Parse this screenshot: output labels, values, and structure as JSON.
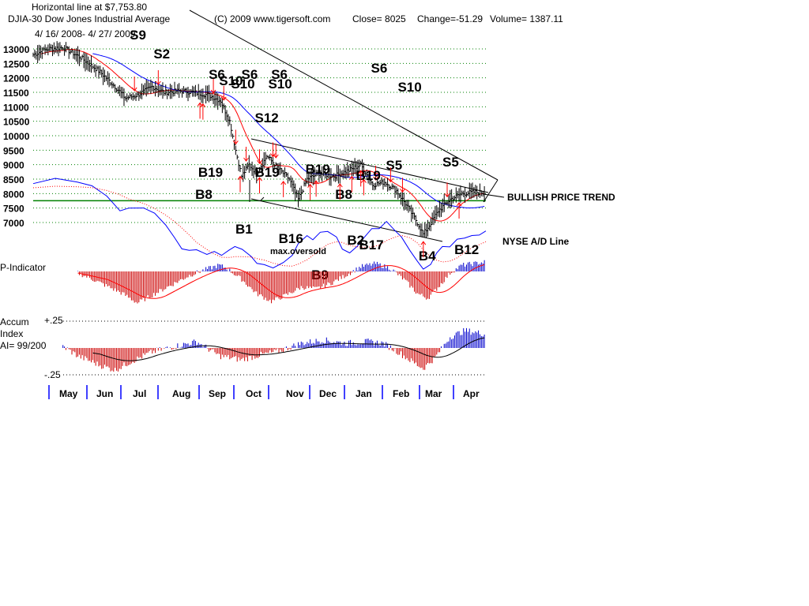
{
  "header": {
    "horizontal_line": "Horizontal line at $7,753.80",
    "index": "DJIA-30  Dow Jones Industrial Average",
    "copyright": "(C) 2009 www.tigersoft.com",
    "close": "Close=  8025",
    "change": "Change=-51.29",
    "volume": "Volume= 1387.11",
    "date_range": "4/ 16/ 2008- 4/ 27/ 2009"
  },
  "annotations": {
    "bullish_trend": "BULLISH PRICE TREND",
    "nyse_ad": "NYSE A/D Line",
    "max_oversold": "max.oversold",
    "p_indicator": "P-Indicator",
    "accum_1": "Accum",
    "accum_2": "Index",
    "accum_3": "AI= 99/200",
    "ai_top": "+.25",
    "ai_bottom": "-.25"
  },
  "colors": {
    "price": "#000000",
    "ma_red": "#ff0000",
    "ma_blue": "#0000ff",
    "ad_line": "#0000ff",
    "grid": "#008000",
    "horizontal_line": "#008000",
    "positive_bar": "#0000cc",
    "negative_bar": "#cc0000"
  },
  "chart_data": {
    "type": "line",
    "title": "DJIA-30  Dow Jones Industrial Average",
    "y_ticks": [
      13000,
      12500,
      12000,
      11500,
      11000,
      10500,
      10000,
      9500,
      9000,
      8500,
      8000,
      7500,
      7000
    ],
    "ylim": [
      6500,
      13200
    ],
    "months": [
      "May",
      "Jun",
      "Jul",
      "Aug",
      "Sep",
      "Oct",
      "Nov",
      "Dec",
      "Jan",
      "Feb",
      "Mar",
      "Apr"
    ],
    "horizontal_line": 7753.8,
    "price_keypoints": [
      [
        0,
        12800
      ],
      [
        10,
        13000
      ],
      [
        20,
        13050
      ],
      [
        32,
        12700
      ],
      [
        45,
        12200
      ],
      [
        55,
        11700
      ],
      [
        62,
        11300
      ],
      [
        70,
        11400
      ],
      [
        80,
        11700
      ],
      [
        88,
        11500
      ],
      [
        98,
        11550
      ],
      [
        108,
        11500
      ],
      [
        118,
        11400
      ],
      [
        126,
        11200
      ],
      [
        132,
        10500
      ],
      [
        136,
        9500
      ],
      [
        140,
        8600
      ],
      [
        145,
        9000
      ],
      [
        150,
        8700
      ],
      [
        157,
        9300
      ],
      [
        164,
        8900
      ],
      [
        172,
        8500
      ],
      [
        178,
        7800
      ],
      [
        184,
        8500
      ],
      [
        192,
        8700
      ],
      [
        202,
        8600
      ],
      [
        212,
        8800
      ],
      [
        220,
        9000
      ],
      [
        228,
        8300
      ],
      [
        236,
        8400
      ],
      [
        244,
        8100
      ],
      [
        252,
        7500
      ],
      [
        258,
        7000
      ],
      [
        262,
        6600
      ],
      [
        266,
        6900
      ],
      [
        272,
        7400
      ],
      [
        280,
        7800
      ],
      [
        288,
        8000
      ],
      [
        296,
        8050
      ],
      [
        303,
        8025
      ]
    ],
    "signals": [
      {
        "label": "S9",
        "dir": "sell",
        "x": 68
      },
      {
        "label": "S2",
        "dir": "sell",
        "x": 84
      },
      {
        "label": "S6",
        "dir": "sell",
        "x": 121
      },
      {
        "label": "S10",
        "dir": "sell",
        "x": 128
      },
      {
        "label": "S10",
        "dir": "sell",
        "x": 136
      },
      {
        "label": "S6",
        "dir": "sell",
        "x": 143
      },
      {
        "label": "S12",
        "dir": "sell",
        "x": 152
      },
      {
        "label": "S10",
        "dir": "sell",
        "x": 161
      },
      {
        "label": "S6",
        "dir": "sell",
        "x": 163
      },
      {
        "label": "S6",
        "dir": "sell",
        "x": 230
      },
      {
        "label": "S5",
        "dir": "sell",
        "x": 240
      },
      {
        "label": "S10",
        "dir": "sell",
        "x": 248
      },
      {
        "label": "S5",
        "dir": "sell",
        "x": 278
      },
      {
        "label": "B19",
        "dir": "buy",
        "x": 114
      },
      {
        "label": "B8",
        "dir": "buy",
        "x": 112
      },
      {
        "label": "B1",
        "dir": "buy",
        "x": 139
      },
      {
        "label": "B19",
        "dir": "buy",
        "x": 152
      },
      {
        "label": "B16",
        "dir": "buy",
        "x": 168
      },
      {
        "label": "B19",
        "dir": "buy",
        "x": 186
      },
      {
        "label": "B9",
        "dir": "buy",
        "x": 190
      },
      {
        "label": "B8",
        "dir": "buy",
        "x": 206
      },
      {
        "label": "B2",
        "dir": "buy",
        "x": 214
      },
      {
        "label": "B17",
        "dir": "buy",
        "x": 222
      },
      {
        "label": "B19",
        "dir": "buy",
        "x": 220
      },
      {
        "label": "B4",
        "dir": "buy",
        "x": 262
      },
      {
        "label": "B12",
        "dir": "buy",
        "x": 286
      }
    ]
  }
}
